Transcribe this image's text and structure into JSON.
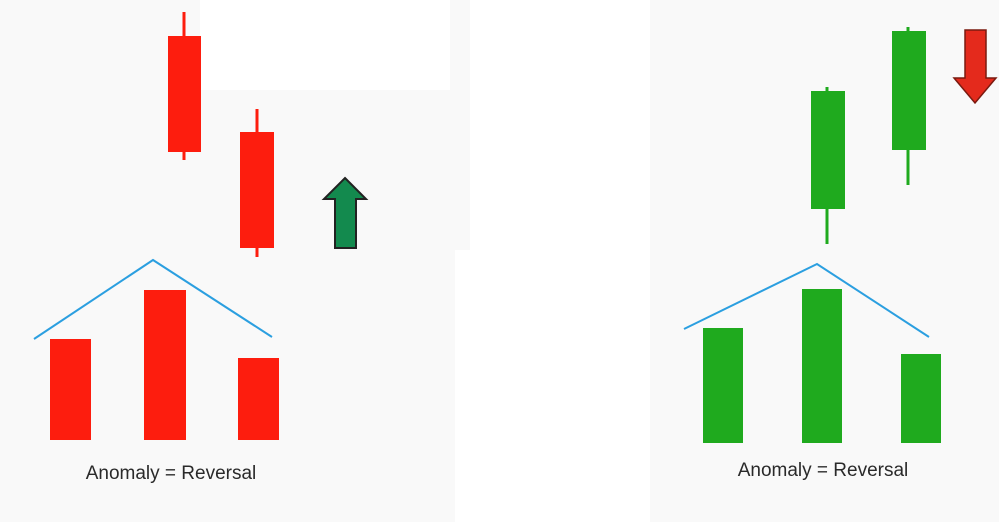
{
  "colors": {
    "bear": "#fd1d0e",
    "bull": "#1faa1e",
    "bull_dark": "#0d8a2e",
    "up_arrow": "#138a4e",
    "down_arrow": "#e42a1c",
    "guide": "#2b9fe0",
    "background": "#ffffff"
  },
  "panels": [
    {
      "name": "bearish-anomaly",
      "caption": "Anomaly = Reversal",
      "signal": "up-arrow-icon"
    },
    {
      "name": "bullish-anomaly",
      "caption": "Anomaly = Reversal",
      "signal": "down-arrow-icon"
    }
  ]
}
